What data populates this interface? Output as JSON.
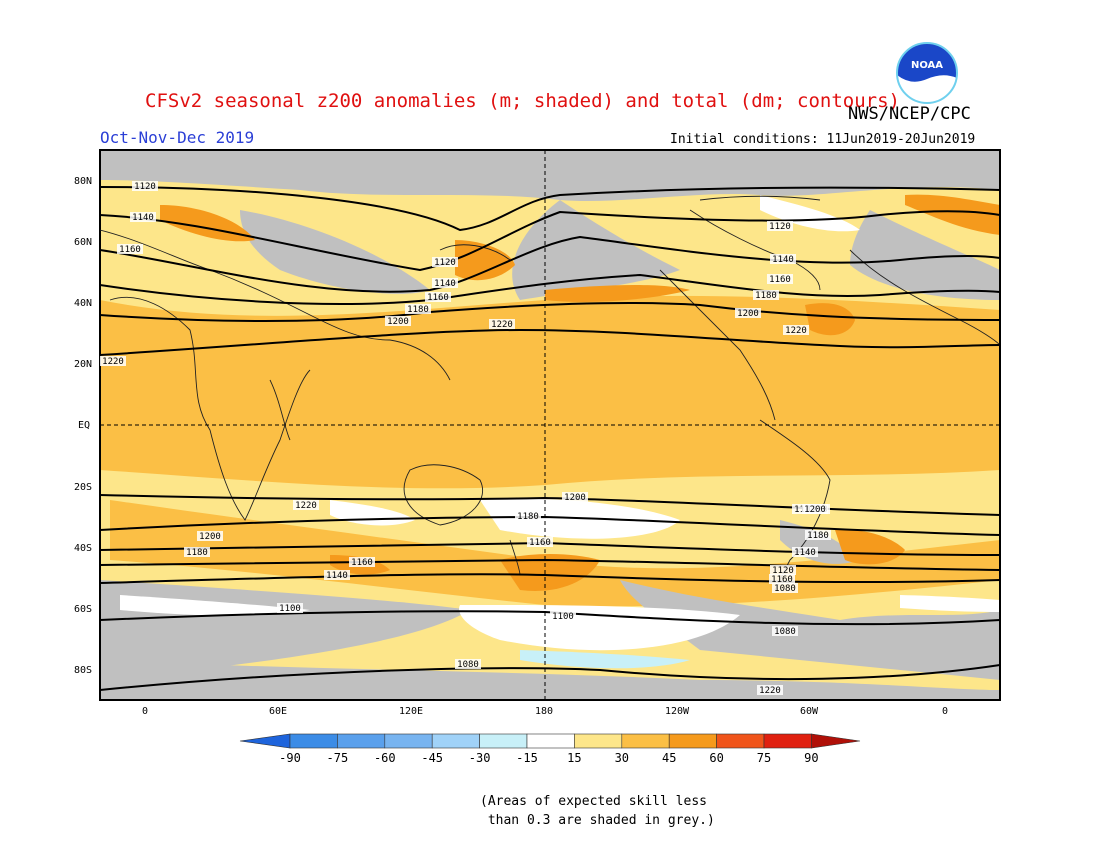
{
  "title": "CFSv2 seasonal z200 anomalies (m; shaded) and total (dm; contours)",
  "agency": "NWS/NCEP/CPC",
  "logo_text": "NOAA",
  "season": "Oct-Nov-Dec 2019",
  "initial_conditions": "Initial conditions: 11Jun2019-20Jun2019",
  "axes": {
    "lat_labels": [
      "80N",
      "60N",
      "40N",
      "20N",
      "EQ",
      "20S",
      "40S",
      "60S",
      "80S"
    ],
    "lon_labels": [
      "0",
      "60E",
      "120E",
      "180",
      "120W",
      "60W",
      "0"
    ]
  },
  "contour_labels": [
    "1120",
    "1140",
    "1160",
    "1120",
    "1140",
    "1160",
    "1180",
    "1200",
    "1220",
    "1120",
    "1140",
    "1160",
    "1180",
    "1200",
    "1220",
    "1220",
    "1220",
    "1200",
    "1180",
    "1160",
    "1140",
    "1100",
    "1080",
    "1220",
    "1200",
    "1180",
    "1160",
    "1140",
    "1120",
    "1100",
    "1080",
    "1220",
    "1200",
    "1180",
    "1160",
    "1140",
    "1080"
  ],
  "colorbar": {
    "ticks": [
      "-90",
      "-75",
      "-60",
      "-45",
      "-30",
      "-15",
      "15",
      "30",
      "45",
      "60",
      "75",
      "90"
    ],
    "colors": [
      "#1e64dc",
      "#3c8ce6",
      "#5aa0ec",
      "#78b4f0",
      "#a0d2f8",
      "#c8f0f8",
      "#ffffff",
      "#fde68a",
      "#fbbf45",
      "#f59a1c",
      "#f0541a",
      "#e02010",
      "#b01008"
    ]
  },
  "note": "(Areas of expected skill less\n than 0.3 are shaded in grey.)"
}
